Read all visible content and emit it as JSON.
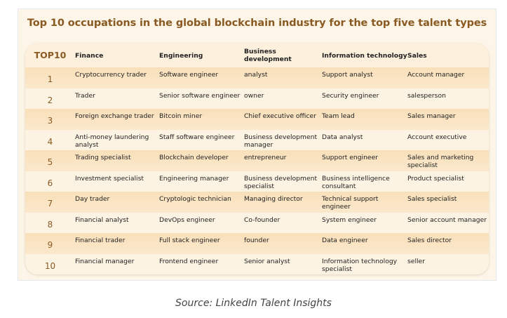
{
  "title": "Top 10 occupations in the global blockchain industry for the top five talent types",
  "headers": [
    "TOP10",
    "Finance",
    "Engineering",
    "Business development",
    "Information technology",
    "Sales"
  ],
  "rows": [
    [
      "1",
      "Cryptocurrency trader",
      "Software engineer",
      "analyst",
      "Support analyst",
      "Account manager"
    ],
    [
      "2",
      "Trader",
      "Senior software engineer",
      "owner",
      "Security engineer",
      "salesperson"
    ],
    [
      "3",
      "Foreign exchange trader",
      "Bitcoin miner",
      "Chief executive officer",
      "Team lead",
      "Sales manager"
    ],
    [
      "4",
      "Anti-money laundering analyst",
      "Staff software engineer",
      "Business development manager",
      "Data analyst",
      "Account executive"
    ],
    [
      "5",
      "Trading specialist",
      "Blockchain developer",
      "entrepreneur",
      "Support engineer",
      "Sales and marketing specialist"
    ],
    [
      "6",
      "Investment specialist",
      "Engineering manager",
      "Business development specialist",
      "Business intelligence consultant",
      "Product specialist"
    ],
    [
      "7",
      "Day trader",
      "Cryptologic technician",
      "Managing director",
      "Technical support engineer",
      "Sales specialist"
    ],
    [
      "8",
      "Financial analyst",
      "DevOps engineer",
      "Co-founder",
      "System engineer",
      "Senior account manager"
    ],
    [
      "9",
      "Financial trader",
      "Full stack engineer",
      "founder",
      "Data engineer",
      "Sales director"
    ],
    [
      "10",
      "Financial manager",
      "Frontend engineer",
      "Senior analyst",
      "Information technology specialist",
      "seller"
    ]
  ],
  "source": "Source: LinkedIn Talent Insights",
  "colors": {
    "title": "#8a5a22",
    "row_dark": "#f9e0ba",
    "row_light": "#fdf3e3"
  }
}
